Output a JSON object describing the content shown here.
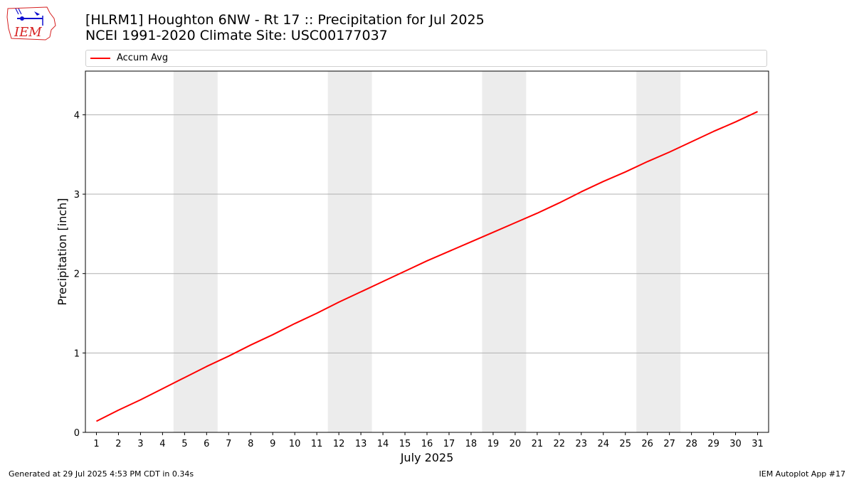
{
  "header": {
    "logo_text": "IEM",
    "title_line1": "[HLRM1] Houghton 6NW - Rt 17 :: Precipitation for Jul 2025",
    "title_line2": "NCEI 1991-2020 Climate Site: USC00177037"
  },
  "footer": {
    "left": "Generated at 29 Jul 2025 4:53 PM CDT in 0.34s",
    "right": "IEM Autoplot App #17"
  },
  "colors": {
    "series": "#ff0000",
    "weekend_band": "#ececec",
    "grid": "#b0b0b0",
    "logo_red": "#d62020",
    "logo_blue": "#1010d0"
  },
  "chart_data": {
    "type": "line",
    "xlabel": "July 2025",
    "ylabel": "Precipitation [inch]",
    "xlim": [
      0.5,
      31.5
    ],
    "ylim": [
      0,
      4.55
    ],
    "x": [
      1,
      2,
      3,
      4,
      5,
      6,
      7,
      8,
      9,
      10,
      11,
      12,
      13,
      14,
      15,
      16,
      17,
      18,
      19,
      20,
      21,
      22,
      23,
      24,
      25,
      26,
      27,
      28,
      29,
      30,
      31
    ],
    "xticks": [
      "1",
      "2",
      "3",
      "4",
      "5",
      "6",
      "7",
      "8",
      "9",
      "10",
      "11",
      "12",
      "13",
      "14",
      "15",
      "16",
      "17",
      "18",
      "19",
      "20",
      "21",
      "22",
      "23",
      "24",
      "25",
      "26",
      "27",
      "28",
      "29",
      "30",
      "31"
    ],
    "yticks": [
      0,
      1,
      2,
      3,
      4
    ],
    "series": [
      {
        "name": "Accum Avg",
        "values": [
          0.14,
          0.28,
          0.41,
          0.55,
          0.69,
          0.83,
          0.96,
          1.1,
          1.23,
          1.37,
          1.5,
          1.64,
          1.77,
          1.9,
          2.03,
          2.16,
          2.28,
          2.4,
          2.52,
          2.64,
          2.76,
          2.89,
          3.03,
          3.16,
          3.28,
          3.41,
          3.53,
          3.66,
          3.79,
          3.91,
          4.04
        ]
      }
    ],
    "weekend_bands": [
      [
        4.5,
        6.5
      ],
      [
        11.5,
        13.5
      ],
      [
        18.5,
        20.5
      ],
      [
        25.5,
        27.5
      ]
    ],
    "grid": "y",
    "legend_position": "top"
  }
}
